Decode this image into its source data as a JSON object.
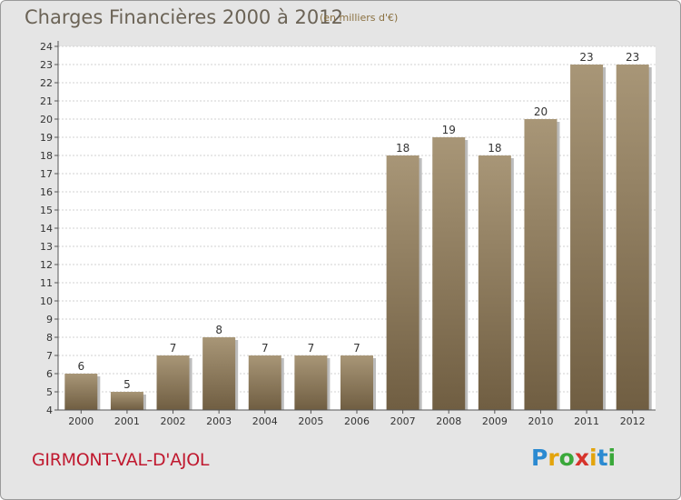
{
  "chart_data": {
    "type": "bar",
    "title": "Charges Financières 2000 à 2012",
    "subtitle": "(en milliers d'€)",
    "categories": [
      "2000",
      "2001",
      "2002",
      "2003",
      "2004",
      "2005",
      "2006",
      "2007",
      "2008",
      "2009",
      "2010",
      "2011",
      "2012"
    ],
    "values": [
      6,
      5,
      7,
      8,
      7,
      7,
      7,
      18,
      19,
      18,
      20,
      23,
      23
    ],
    "ylim": [
      4,
      24
    ],
    "yticks": [
      4,
      5,
      6,
      7,
      8,
      9,
      10,
      11,
      12,
      13,
      14,
      15,
      16,
      17,
      18,
      19,
      20,
      21,
      22,
      23,
      24
    ],
    "grid": true,
    "legend": "none",
    "bar_color_top": "#a89677",
    "bar_color_bottom": "#705e42"
  },
  "commune": "GIRMONT-VAL-D'AJOL",
  "logo": {
    "letters": [
      "P",
      "r",
      "o",
      "x",
      "i",
      "t",
      "i"
    ],
    "colors": [
      "#2b8ad1",
      "#e3a40c",
      "#3aa83a",
      "#d6332b",
      "#e3a40c",
      "#2b8ad1",
      "#3aa83a"
    ]
  }
}
